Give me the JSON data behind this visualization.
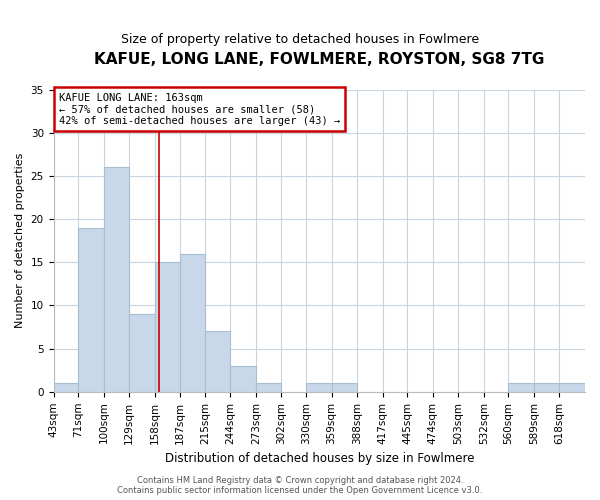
{
  "title": "KAFUE, LONG LANE, FOWLMERE, ROYSTON, SG8 7TG",
  "subtitle": "Size of property relative to detached houses in Fowlmere",
  "xlabel": "Distribution of detached houses by size in Fowlmere",
  "ylabel": "Number of detached properties",
  "footer_line1": "Contains HM Land Registry data © Crown copyright and database right 2024.",
  "footer_line2": "Contains public sector information licensed under the Open Government Licence v3.0.",
  "bin_edges": [
    43,
    71,
    100,
    129,
    158,
    187,
    215,
    244,
    273,
    302,
    330,
    359,
    388,
    417,
    445,
    474,
    503,
    532,
    560,
    589,
    618
  ],
  "bin_labels": [
    "43sqm",
    "71sqm",
    "100sqm",
    "129sqm",
    "158sqm",
    "187sqm",
    "215sqm",
    "244sqm",
    "273sqm",
    "302sqm",
    "330sqm",
    "359sqm",
    "388sqm",
    "417sqm",
    "445sqm",
    "474sqm",
    "503sqm",
    "532sqm",
    "560sqm",
    "589sqm",
    "618sqm"
  ],
  "bar_heights": [
    1,
    19,
    26,
    9,
    15,
    16,
    7,
    3,
    1,
    0,
    1,
    1,
    0,
    0,
    0,
    0,
    0,
    0,
    1,
    1,
    1
  ],
  "bar_color": "#c8d8ea",
  "bar_edgecolor": "#a8bfd0",
  "vline_x": 163,
  "vline_color": "#cc0000",
  "annotation_title": "KAFUE LONG LANE: 163sqm",
  "annotation_line1": "← 57% of detached houses are smaller (58)",
  "annotation_line2": "42% of semi-detached houses are larger (43) →",
  "annotation_box_facecolor": "#ffffff",
  "annotation_box_edgecolor": "#cc0000",
  "ylim": [
    0,
    35
  ],
  "yticks": [
    0,
    5,
    10,
    15,
    20,
    25,
    30,
    35
  ],
  "background_color": "#ffffff",
  "plot_background": "#ffffff",
  "grid_color": "#c8d4e0",
  "title_fontsize": 11,
  "subtitle_fontsize": 9,
  "tick_fontsize": 7.5,
  "ylabel_fontsize": 8,
  "xlabel_fontsize": 8.5,
  "footer_fontsize": 6
}
